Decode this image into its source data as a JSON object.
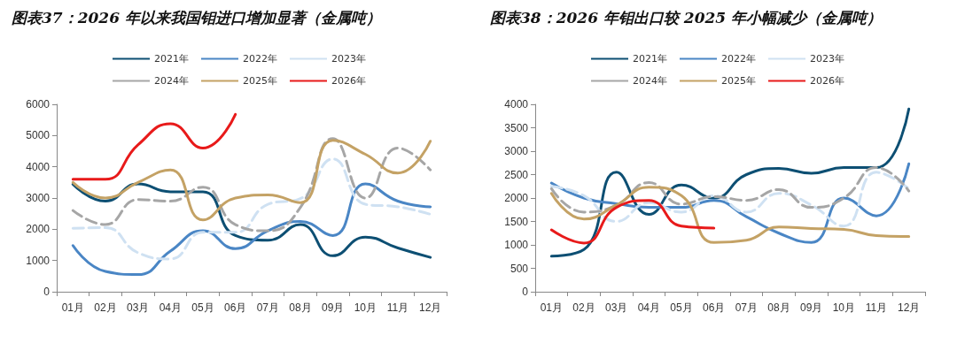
{
  "chart_data": [
    {
      "type": "line",
      "title": "图表37：2026 年以来我国钼进口增加显著（金属吨）",
      "categories": [
        "01月",
        "02月",
        "03月",
        "04月",
        "05月",
        "06月",
        "07月",
        "08月",
        "09月",
        "10月",
        "11月",
        "12月"
      ],
      "ylim": [
        0,
        6000
      ],
      "yticks": [
        0,
        1000,
        2000,
        3000,
        4000,
        5000,
        6000
      ],
      "legend": "top",
      "marker": "none",
      "line_style": "solid",
      "series": [
        {
          "name": "2021年",
          "color": "#0d4f73",
          "values": [
            3440,
            2900,
            3450,
            3200,
            3200,
            1800,
            1650,
            2150,
            1150,
            1750,
            1400,
            1100
          ]
        },
        {
          "name": "2022年",
          "color": "#4a86c5",
          "values": [
            1480,
            650,
            550,
            1300,
            1950,
            1380,
            1950,
            2250,
            1800,
            3450,
            2900,
            2720
          ]
        },
        {
          "name": "2023年",
          "color": "#cfe1f2",
          "line_style": "dashed",
          "values": [
            2030,
            2050,
            1250,
            1050,
            1900,
            1900,
            2800,
            2980,
            4250,
            2800,
            2720,
            2480
          ]
        },
        {
          "name": "2024年",
          "color": "#a6a6a6",
          "line_style": "dashed",
          "values": [
            2600,
            2150,
            2950,
            2900,
            3350,
            2150,
            1950,
            2700,
            4900,
            3000,
            4600,
            3900
          ]
        },
        {
          "name": "2025年",
          "color": "#c4a265",
          "values": [
            3500,
            3000,
            3500,
            3900,
            2300,
            3000,
            3100,
            2850,
            4850,
            4400,
            3800,
            4820
          ]
        },
        {
          "name": "2026年",
          "color": "#e81a1a",
          "values": [
            3600,
            3600,
            4700,
            5380,
            4600,
            5680,
            null,
            null,
            null,
            null,
            null,
            null
          ]
        }
      ]
    },
    {
      "type": "line",
      "title": "图表38：2026 年钼出口较 2025 年小幅减少（金属吨）",
      "categories": [
        "01月",
        "02月",
        "03月",
        "04月",
        "05月",
        "06月",
        "07月",
        "08月",
        "09月",
        "10月",
        "11月",
        "12月"
      ],
      "ylim": [
        0,
        4000
      ],
      "yticks": [
        0,
        500,
        1000,
        1500,
        2000,
        2500,
        3000,
        3500,
        4000
      ],
      "legend": "top",
      "marker": "none",
      "line_style": "solid",
      "series": [
        {
          "name": "2021年",
          "color": "#0d4f73",
          "values": [
            760,
            900,
            2550,
            1650,
            2280,
            2000,
            2500,
            2630,
            2530,
            2650,
            2650,
            3900
          ]
        },
        {
          "name": "2022年",
          "color": "#4a86c5",
          "values": [
            2320,
            2000,
            1880,
            1800,
            1800,
            1950,
            1600,
            1250,
            1050,
            2000,
            1620,
            2730
          ]
        },
        {
          "name": "2023年",
          "color": "#cfe1f2",
          "line_style": "dashed",
          "values": [
            2250,
            2050,
            1500,
            1900,
            1700,
            2050,
            1700,
            2100,
            1850,
            1400,
            2550,
            2200
          ]
        },
        {
          "name": "2024年",
          "color": "#a6a6a6",
          "line_style": "dashed",
          "values": [
            2200,
            1700,
            1850,
            2330,
            1870,
            2030,
            1950,
            2180,
            1800,
            2000,
            2650,
            2150
          ]
        },
        {
          "name": "2025年",
          "color": "#c4a265",
          "values": [
            2100,
            1550,
            1850,
            2230,
            2050,
            1050,
            1100,
            1380,
            1350,
            1330,
            1200,
            1180
          ]
        },
        {
          "name": "2026年",
          "color": "#e81a1a",
          "values": [
            1320,
            1040,
            1800,
            1950,
            1400,
            1360,
            null,
            null,
            null,
            null,
            null,
            null
          ]
        }
      ]
    }
  ]
}
